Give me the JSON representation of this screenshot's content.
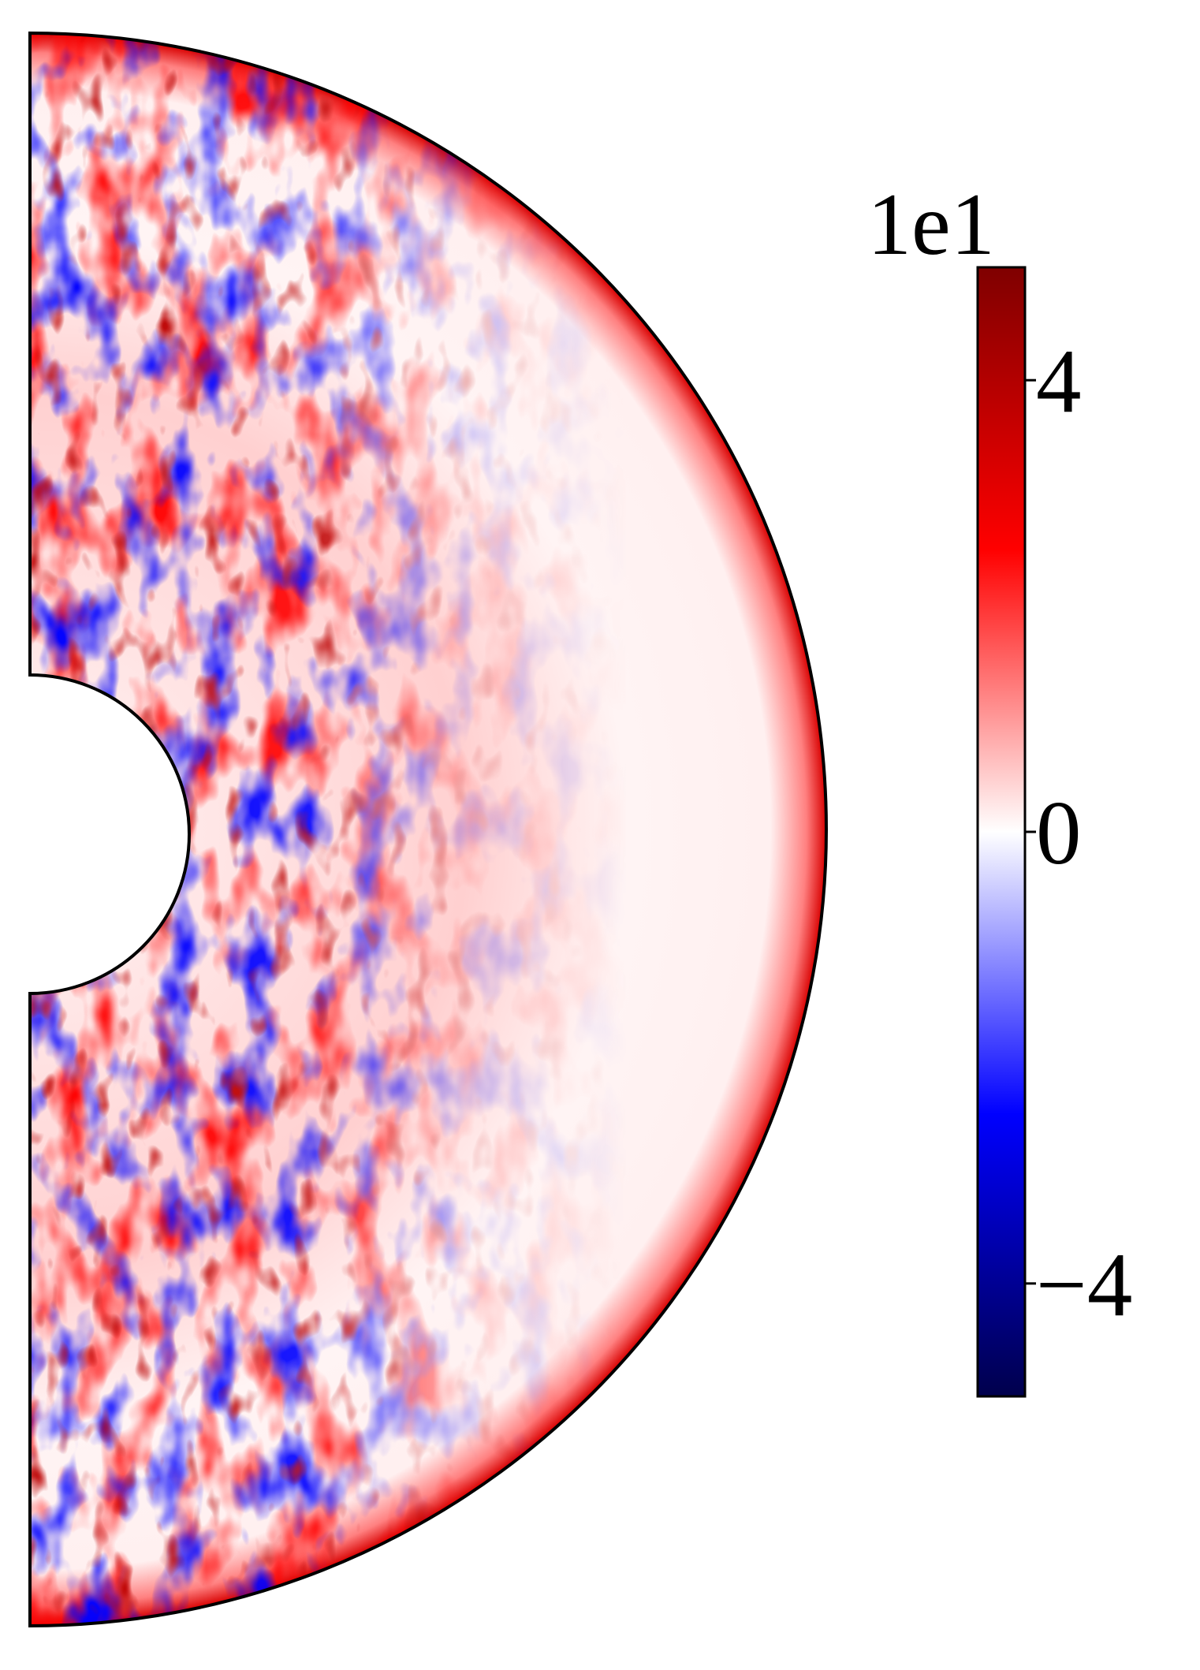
{
  "chart_data": {
    "type": "heatmap",
    "projection": "meridional-half-annulus",
    "colormap": "seismic",
    "colormap_stops": [
      "#00004c",
      "#0000ff",
      "#ffffff",
      "#ff0000",
      "#7f0000"
    ],
    "colorbar": {
      "exponent_label": "1e1",
      "vmin": -5,
      "vmax": 5,
      "ticks": [
        {
          "value": 4,
          "label": "4"
        },
        {
          "value": 0,
          "label": "0"
        },
        {
          "value": -4,
          "label": "−4"
        }
      ]
    },
    "title": "",
    "xlabel": "",
    "ylabel": ""
  }
}
